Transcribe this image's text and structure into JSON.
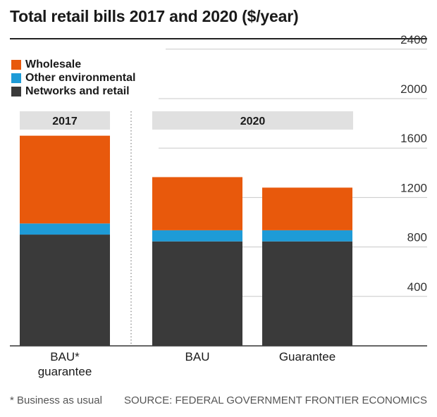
{
  "title": "Total retail bills 2017 and 2020 ($/year)",
  "colors": {
    "wholesale": "#e8590c",
    "other_environmental": "#1e9bd7",
    "networks_and_retail": "#3a3a3a",
    "group_band": "#e0e0e0"
  },
  "footnote": "* Business as usual",
  "source": "SOURCE: FEDERAL GOVERNMENT FRONTIER ECONOMICS",
  "chart_data": {
    "type": "bar",
    "stacked": true,
    "groups": [
      {
        "label": "2017",
        "categories": [
          "BAU*\nguarantee"
        ]
      },
      {
        "label": "2020",
        "categories": [
          "BAU",
          "Guarantee"
        ]
      }
    ],
    "categories": [
      "BAU*\nguarantee",
      "BAU",
      "Guarantee"
    ],
    "series": [
      {
        "name": "Networks and retail",
        "color": "#3a3a3a",
        "values": [
          900,
          845,
          845
        ]
      },
      {
        "name": "Other environmental",
        "color": "#1e9bd7",
        "values": [
          90,
          90,
          90
        ]
      },
      {
        "name": "Wholesale",
        "color": "#e8590c",
        "values": [
          710,
          430,
          345
        ]
      }
    ],
    "legend_order": [
      "Wholesale",
      "Other environmental",
      "Networks and retail"
    ],
    "ylim": [
      0,
      2400
    ],
    "yticks": [
      400,
      800,
      1200,
      1600,
      2000,
      2400
    ],
    "ytick_labels": [
      "400",
      "800",
      "1200",
      "1600",
      "2000",
      "2400"
    ],
    "grid": true,
    "legend_position": "top-left"
  }
}
